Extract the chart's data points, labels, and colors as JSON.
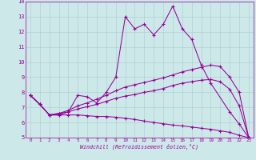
{
  "bg_color": "#cce8e8",
  "line_color": "#990099",
  "xlabel": "Windchill (Refroidissement éolien,°C)",
  "xlim": [
    -0.5,
    23.5
  ],
  "ylim": [
    5,
    14
  ],
  "yticks": [
    5,
    6,
    7,
    8,
    9,
    10,
    11,
    12,
    13,
    14
  ],
  "xticks": [
    0,
    1,
    2,
    3,
    4,
    5,
    6,
    7,
    8,
    9,
    10,
    11,
    12,
    13,
    14,
    15,
    16,
    17,
    18,
    19,
    20,
    21,
    22,
    23
  ],
  "series": [
    [
      7.8,
      7.2,
      6.5,
      6.5,
      6.7,
      7.8,
      7.7,
      7.3,
      8.0,
      9.0,
      13.0,
      12.2,
      12.5,
      11.8,
      12.5,
      13.7,
      12.2,
      11.5,
      9.8,
      8.6,
      null,
      6.7,
      5.9,
      5.0
    ],
    [
      7.8,
      7.2,
      6.5,
      6.6,
      6.8,
      7.1,
      7.3,
      7.55,
      7.8,
      8.1,
      8.35,
      8.5,
      8.65,
      8.8,
      8.95,
      9.15,
      9.35,
      9.5,
      9.65,
      9.8,
      9.7,
      9.0,
      8.0,
      5.0
    ],
    [
      7.8,
      7.2,
      6.5,
      6.6,
      6.7,
      6.9,
      7.05,
      7.2,
      7.4,
      7.6,
      7.75,
      7.85,
      8.0,
      8.1,
      8.25,
      8.45,
      8.6,
      8.7,
      8.8,
      8.85,
      8.7,
      8.2,
      7.1,
      5.0
    ],
    [
      7.8,
      7.2,
      6.5,
      6.5,
      6.5,
      6.5,
      6.45,
      6.4,
      6.4,
      6.35,
      6.28,
      6.2,
      6.1,
      6.0,
      5.92,
      5.83,
      5.78,
      5.7,
      5.62,
      5.55,
      5.45,
      5.35,
      5.15,
      5.0
    ]
  ]
}
